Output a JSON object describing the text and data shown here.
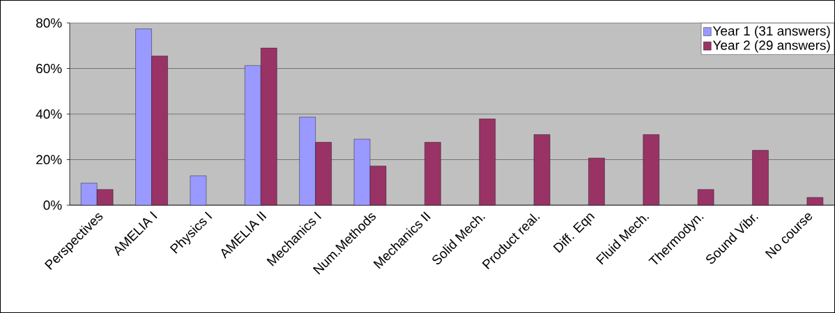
{
  "chart_data": {
    "type": "bar",
    "categories": [
      "Perspectives",
      "AMELIA I",
      "Physics I",
      "AMELIA II",
      "Mechanics I",
      "Num.Methods",
      "Mechanics II",
      "Solid Mech.",
      "Product real.",
      "Diff. Eqn",
      "Fluid Mech.",
      "Thermodyn.",
      "Sound Vibr.",
      "No course"
    ],
    "series": [
      {
        "name": "Year 1 (31 answers)",
        "color": "#9999ff",
        "values": [
          9.7,
          77.4,
          12.9,
          61.3,
          38.7,
          29.0,
          null,
          null,
          null,
          null,
          null,
          null,
          null,
          null
        ]
      },
      {
        "name": "Year 2 (29 answers)",
        "color": "#993366",
        "values": [
          6.9,
          65.5,
          null,
          69.0,
          27.6,
          17.2,
          27.6,
          37.9,
          31.0,
          20.7,
          31.0,
          6.9,
          24.1,
          3.4
        ]
      }
    ],
    "ylim": [
      0,
      80
    ],
    "yticks": [
      {
        "value": 0,
        "label": "0%"
      },
      {
        "value": 20,
        "label": "20%"
      },
      {
        "value": 40,
        "label": "40%"
      },
      {
        "value": 60,
        "label": "60%"
      },
      {
        "value": 80,
        "label": "80%"
      }
    ],
    "grid": "y",
    "legend": "top right"
  }
}
